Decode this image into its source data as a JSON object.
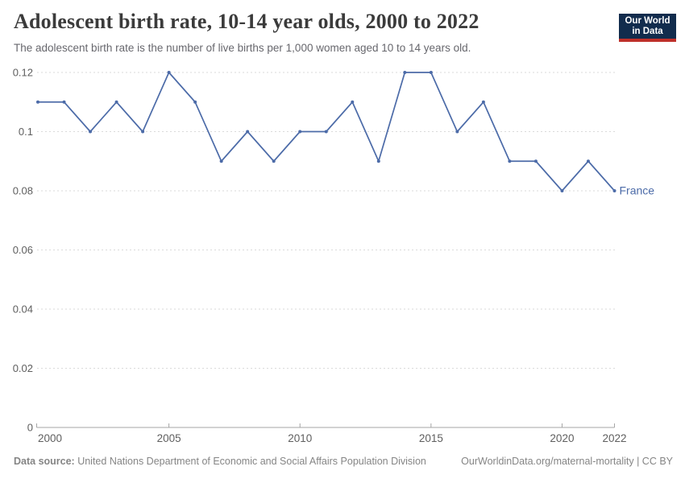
{
  "header": {
    "title": "Adolescent birth rate, 10-14 year olds, 2000 to 2022",
    "subtitle": "The adolescent birth rate is the number of live births per 1,000 women aged 10 to 14 years old.",
    "logo": {
      "line1": "Our World",
      "line2": "in Data"
    }
  },
  "chart_data": {
    "type": "line",
    "title": "Adolescent birth rate, 10-14 year olds, 2000 to 2022",
    "xlabel": "",
    "ylabel": "",
    "xlim": [
      2000,
      2022
    ],
    "ylim": [
      0,
      0.12
    ],
    "grid": "horizontal-dashed",
    "legend_position": "end-of-line-label",
    "x_ticks": [
      2000,
      2005,
      2010,
      2015,
      2020,
      2022
    ],
    "x_tick_labels": [
      "2000",
      "2005",
      "2010",
      "2015",
      "2020",
      "2022"
    ],
    "y_ticks": [
      0,
      0.02,
      0.04,
      0.06,
      0.08,
      0.1,
      0.12
    ],
    "y_tick_labels": [
      "0",
      "0.02",
      "0.04",
      "0.06",
      "0.08",
      "0.1",
      "0.12"
    ],
    "end_label": "France",
    "series": [
      {
        "name": "France",
        "color": "#4c6ba8",
        "x": [
          2000,
          2001,
          2002,
          2003,
          2004,
          2005,
          2006,
          2007,
          2008,
          2009,
          2010,
          2011,
          2012,
          2013,
          2014,
          2015,
          2016,
          2017,
          2018,
          2019,
          2020,
          2021,
          2022
        ],
        "values": [
          0.11,
          0.11,
          0.1,
          0.11,
          0.1,
          0.12,
          0.11,
          0.09,
          0.1,
          0.09,
          0.1,
          0.1,
          0.11,
          0.09,
          0.12,
          0.12,
          0.1,
          0.11,
          0.09,
          0.09,
          0.08,
          0.09,
          0.08
        ]
      }
    ]
  },
  "footer": {
    "source_label": "Data source:",
    "source_text": " United Nations Department of Economic and Social Affairs Population Division",
    "link_text": "OurWorldinData.org/maternal-mortality | CC BY"
  },
  "colors": {
    "line": "#4c6ba8",
    "gridline": "#dadada",
    "axis": "#a5a5a5",
    "tick_text": "#5f5f5f",
    "title_text": "#3b3b3b",
    "subtitle_text": "#67676d",
    "footer_text": "#858585",
    "logo_bg": "#122c4d",
    "logo_stripe": "#c0302a"
  }
}
